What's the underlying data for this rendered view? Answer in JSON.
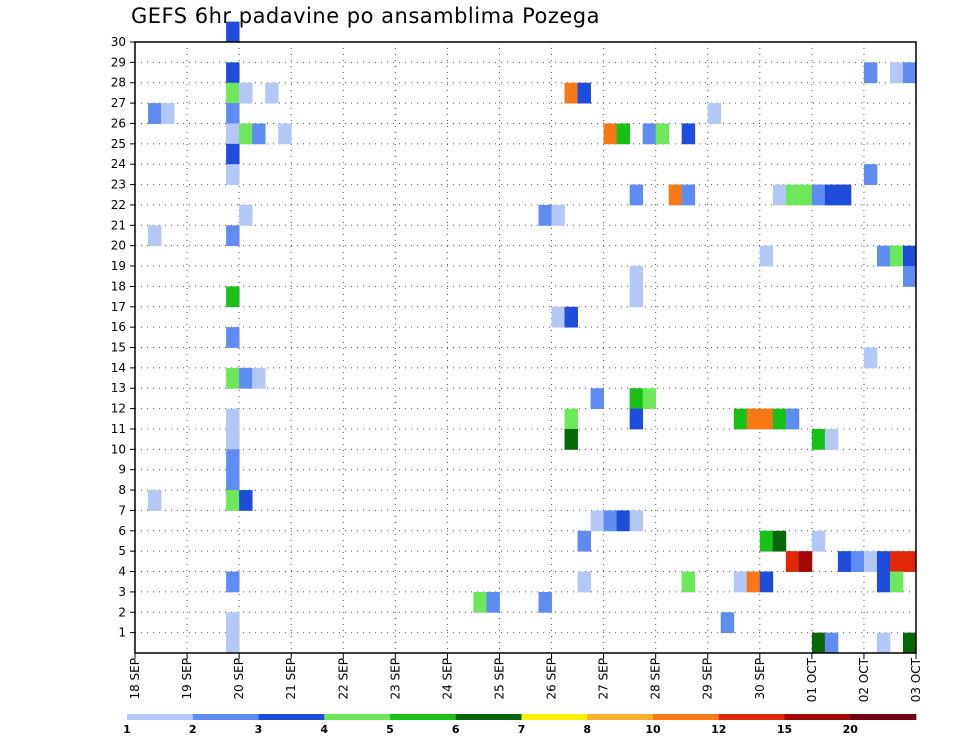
{
  "chart_data": {
    "type": "heatmap",
    "title": "GEFS 6hr padavine po ansamblima Pozega",
    "y_ticks": [
      "1",
      "2",
      "3",
      "4",
      "5",
      "6",
      "7",
      "8",
      "9",
      "10",
      "11",
      "12",
      "13",
      "14",
      "15",
      "16",
      "17",
      "18",
      "19",
      "20",
      "21",
      "22",
      "23",
      "24",
      "25",
      "26",
      "27",
      "28",
      "29",
      "30"
    ],
    "ylim": [
      0,
      30
    ],
    "x_ticks": [
      "18 SEP",
      "19 SEP",
      "20 SEP",
      "21 SEP",
      "22 SEP",
      "23 SEP",
      "24 SEP",
      "25 SEP",
      "26 SEP",
      "27 SEP",
      "28 SEP",
      "29 SEP",
      "30 SEP",
      "01 OCT",
      "02 OCT",
      "03 OCT"
    ],
    "xlim": [
      0,
      60
    ],
    "grid": true,
    "colorbar": {
      "labels": [
        "1",
        "2",
        "3",
        "4",
        "5",
        "6",
        "7",
        "8",
        "10",
        "12",
        "15",
        "20"
      ],
      "colors": [
        "#b4c8f8",
        "#5f8cf0",
        "#1f4ddb",
        "#6de85a",
        "#18c018",
        "#086808",
        "#f8f000",
        "#f8b030",
        "#f87818",
        "#e02808",
        "#a00808",
        "#700010"
      ]
    },
    "cells": [
      {
        "m": 30,
        "t": 7,
        "c": 2
      },
      {
        "m": 28,
        "t": 7,
        "c": 2
      },
      {
        "m": 28,
        "t": 56,
        "c": 1
      },
      {
        "m": 28,
        "t": 58,
        "c": 0
      },
      {
        "m": 28,
        "t": 59,
        "c": 1
      },
      {
        "m": 27,
        "t": 7,
        "c": 3
      },
      {
        "m": 27,
        "t": 8,
        "c": 0
      },
      {
        "m": 27,
        "t": 10,
        "c": 0
      },
      {
        "m": 27,
        "t": 33,
        "c": 8
      },
      {
        "m": 27,
        "t": 34,
        "c": 2
      },
      {
        "m": 26,
        "t": 1,
        "c": 1
      },
      {
        "m": 26,
        "t": 2,
        "c": 0
      },
      {
        "m": 26,
        "t": 7,
        "c": 1
      },
      {
        "m": 26,
        "t": 44,
        "c": 0
      },
      {
        "m": 25,
        "t": 7,
        "c": 0
      },
      {
        "m": 25,
        "t": 8,
        "c": 3
      },
      {
        "m": 25,
        "t": 9,
        "c": 1
      },
      {
        "m": 25,
        "t": 11,
        "c": 0
      },
      {
        "m": 25,
        "t": 36,
        "c": 8
      },
      {
        "m": 25,
        "t": 37,
        "c": 4
      },
      {
        "m": 25,
        "t": 39,
        "c": 1
      },
      {
        "m": 25,
        "t": 40,
        "c": 3
      },
      {
        "m": 25,
        "t": 42,
        "c": 2
      },
      {
        "m": 24,
        "t": 7,
        "c": 2
      },
      {
        "m": 23,
        "t": 7,
        "c": 0
      },
      {
        "m": 23,
        "t": 56,
        "c": 1
      },
      {
        "m": 22,
        "t": 38,
        "c": 1
      },
      {
        "m": 22,
        "t": 41,
        "c": 8
      },
      {
        "m": 22,
        "t": 42,
        "c": 1
      },
      {
        "m": 22,
        "t": 49,
        "c": 0
      },
      {
        "m": 22,
        "t": 50,
        "c": 3
      },
      {
        "m": 22,
        "t": 51,
        "c": 3
      },
      {
        "m": 22,
        "t": 52,
        "c": 1
      },
      {
        "m": 22,
        "t": 53,
        "c": 2
      },
      {
        "m": 22,
        "t": 54,
        "c": 2
      },
      {
        "m": 21,
        "t": 8,
        "c": 0
      },
      {
        "m": 21,
        "t": 31,
        "c": 1
      },
      {
        "m": 21,
        "t": 32,
        "c": 0
      },
      {
        "m": 20,
        "t": 1,
        "c": 0
      },
      {
        "m": 20,
        "t": 7,
        "c": 1
      },
      {
        "m": 19,
        "t": 48,
        "c": 0
      },
      {
        "m": 19,
        "t": 57,
        "c": 1
      },
      {
        "m": 19,
        "t": 58,
        "c": 3
      },
      {
        "m": 19,
        "t": 59,
        "c": 2
      },
      {
        "m": 18,
        "t": 38,
        "c": 0
      },
      {
        "m": 18,
        "t": 59,
        "c": 1
      },
      {
        "m": 17,
        "t": 7,
        "c": 4
      },
      {
        "m": 17,
        "t": 38,
        "c": 0
      },
      {
        "m": 16,
        "t": 32,
        "c": 0
      },
      {
        "m": 16,
        "t": 33,
        "c": 2
      },
      {
        "m": 15,
        "t": 7,
        "c": 1
      },
      {
        "m": 14,
        "t": 56,
        "c": 0
      },
      {
        "m": 13,
        "t": 7,
        "c": 3
      },
      {
        "m": 13,
        "t": 8,
        "c": 1
      },
      {
        "m": 13,
        "t": 9,
        "c": 0
      },
      {
        "m": 12,
        "t": 35,
        "c": 1
      },
      {
        "m": 12,
        "t": 38,
        "c": 4
      },
      {
        "m": 12,
        "t": 39,
        "c": 3
      },
      {
        "m": 11,
        "t": 7,
        "c": 0
      },
      {
        "m": 11,
        "t": 33,
        "c": 3
      },
      {
        "m": 11,
        "t": 38,
        "c": 2
      },
      {
        "m": 11,
        "t": 46,
        "c": 4
      },
      {
        "m": 11,
        "t": 47,
        "c": 8
      },
      {
        "m": 11,
        "t": 48,
        "c": 8
      },
      {
        "m": 11,
        "t": 49,
        "c": 4
      },
      {
        "m": 11,
        "t": 50,
        "c": 1
      },
      {
        "m": 10,
        "t": 7,
        "c": 0
      },
      {
        "m": 10,
        "t": 33,
        "c": 5
      },
      {
        "m": 10,
        "t": 52,
        "c": 4
      },
      {
        "m": 10,
        "t": 53,
        "c": 0
      },
      {
        "m": 9,
        "t": 7,
        "c": 1
      },
      {
        "m": 8,
        "t": 7,
        "c": 1
      },
      {
        "m": 7,
        "t": 1,
        "c": 0
      },
      {
        "m": 7,
        "t": 7,
        "c": 3
      },
      {
        "m": 7,
        "t": 8,
        "c": 2
      },
      {
        "m": 6,
        "t": 35,
        "c": 0
      },
      {
        "m": 6,
        "t": 36,
        "c": 1
      },
      {
        "m": 6,
        "t": 37,
        "c": 2
      },
      {
        "m": 6,
        "t": 38,
        "c": 0
      },
      {
        "m": 5,
        "t": 34,
        "c": 1
      },
      {
        "m": 5,
        "t": 48,
        "c": 4
      },
      {
        "m": 5,
        "t": 49,
        "c": 5
      },
      {
        "m": 5,
        "t": 52,
        "c": 0
      },
      {
        "m": 4,
        "t": 50,
        "c": 9
      },
      {
        "m": 4,
        "t": 51,
        "c": 10
      },
      {
        "m": 4,
        "t": 54,
        "c": 2
      },
      {
        "m": 4,
        "t": 55,
        "c": 1
      },
      {
        "m": 4,
        "t": 56,
        "c": 0
      },
      {
        "m": 4,
        "t": 57,
        "c": 2
      },
      {
        "m": 4,
        "t": 58,
        "c": 9
      },
      {
        "m": 4,
        "t": 59,
        "c": 9
      },
      {
        "m": 3,
        "t": 7,
        "c": 1
      },
      {
        "m": 3,
        "t": 34,
        "c": 0
      },
      {
        "m": 3,
        "t": 42,
        "c": 3
      },
      {
        "m": 3,
        "t": 46,
        "c": 0
      },
      {
        "m": 3,
        "t": 47,
        "c": 8
      },
      {
        "m": 3,
        "t": 48,
        "c": 2
      },
      {
        "m": 3,
        "t": 57,
        "c": 2
      },
      {
        "m": 3,
        "t": 58,
        "c": 3
      },
      {
        "m": 2,
        "t": 26,
        "c": 3
      },
      {
        "m": 2,
        "t": 27,
        "c": 1
      },
      {
        "m": 2,
        "t": 31,
        "c": 1
      },
      {
        "m": 1,
        "t": 7,
        "c": 0
      },
      {
        "m": 1,
        "t": 45,
        "c": 1
      },
      {
        "m": 0,
        "t": 7,
        "c": 0
      },
      {
        "m": 0,
        "t": 52,
        "c": 5
      },
      {
        "m": 0,
        "t": 53,
        "c": 1
      },
      {
        "m": 0,
        "t": 57,
        "c": 0
      },
      {
        "m": 0,
        "t": 59,
        "c": 5
      }
    ]
  }
}
